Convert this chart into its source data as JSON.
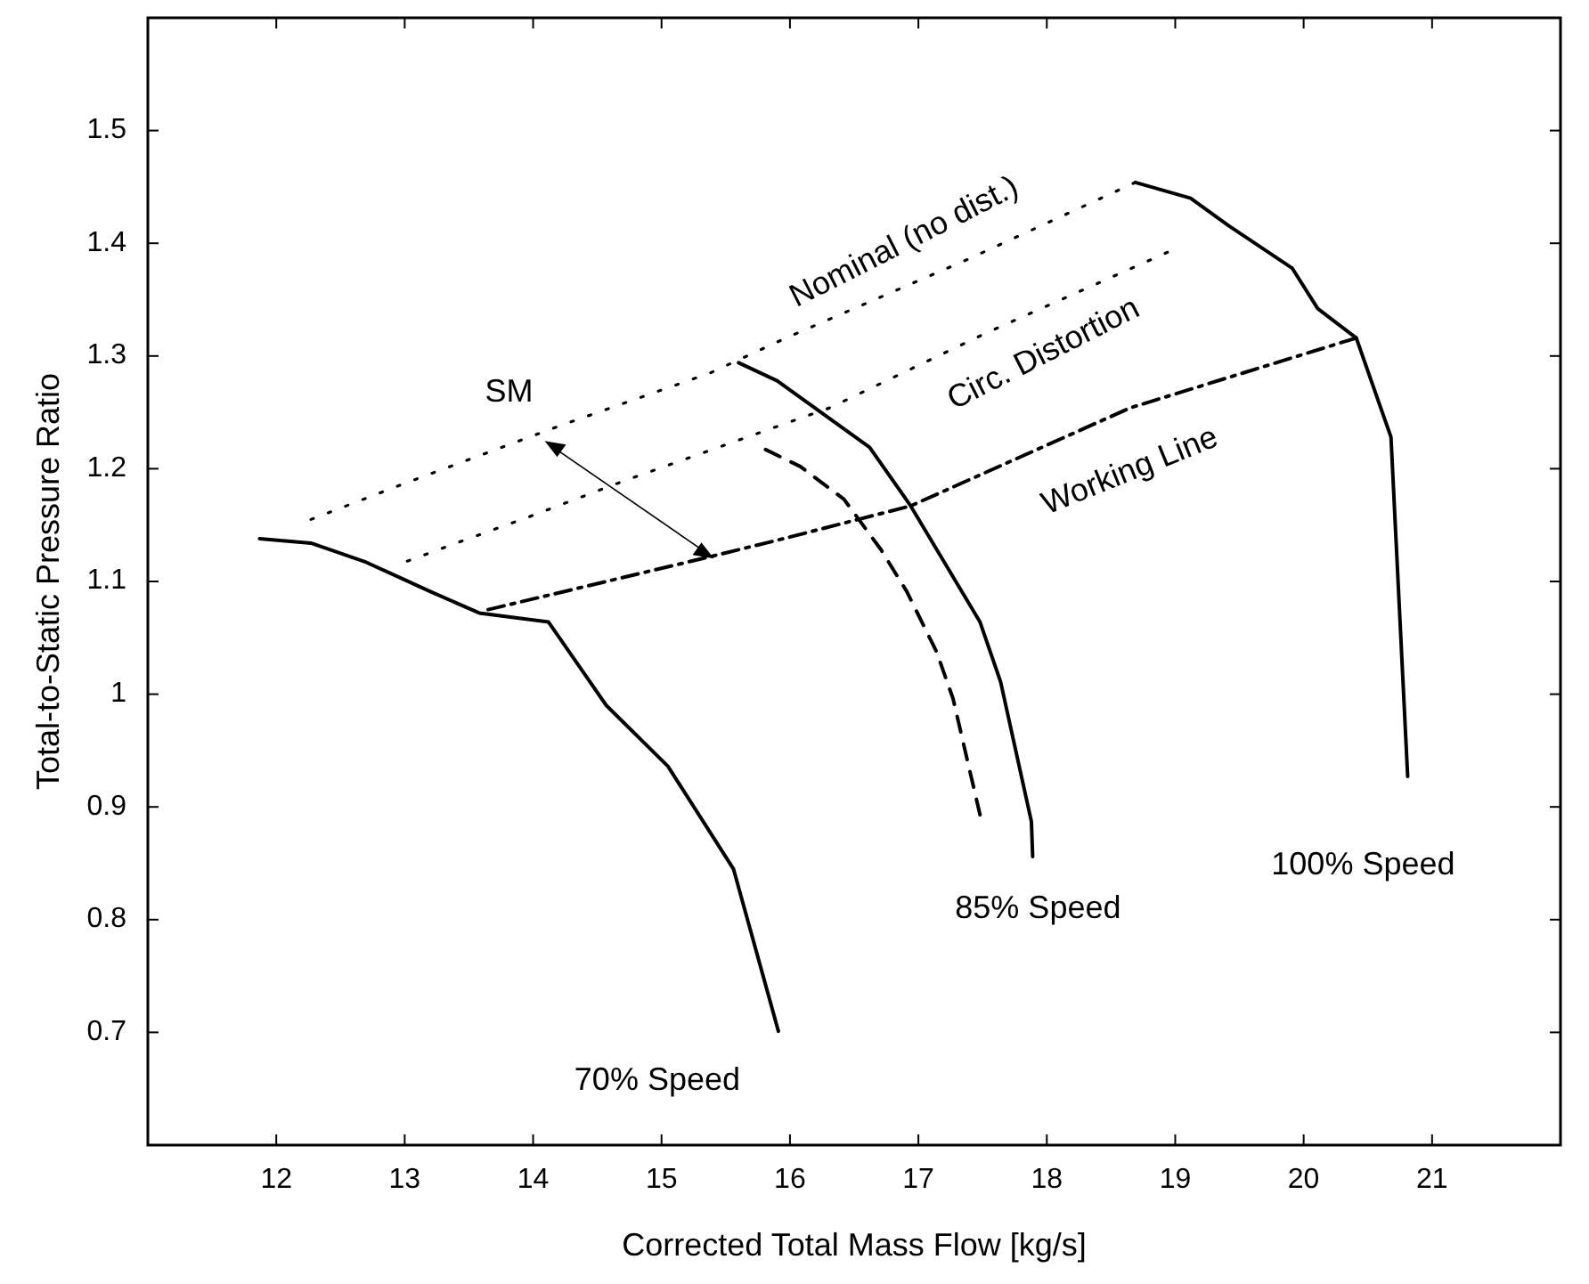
{
  "chart_data": {
    "type": "line",
    "xlabel": "Corrected Total Mass Flow [kg/s]",
    "ylabel": "Total-to-Static Pressure Ratio",
    "xlim": [
      11,
      22
    ],
    "ylim": [
      0.6,
      1.6
    ],
    "xticks": [
      12,
      13,
      14,
      15,
      16,
      17,
      18,
      19,
      20,
      21
    ],
    "yticks": [
      0.7,
      0.8,
      0.9,
      1,
      1.1,
      1.2,
      1.3,
      1.4,
      1.5
    ],
    "grid": false,
    "series": [
      {
        "name": "70% Speed",
        "color": "#000000",
        "line_style": "solid",
        "x": [
          11.87,
          12.27,
          12.7,
          12.95,
          13.2,
          13.58,
          14.12,
          14.57,
          15.05,
          15.56,
          15.91
        ],
        "values": [
          1.138,
          1.134,
          1.117,
          1.104,
          1.091,
          1.072,
          1.064,
          0.99,
          0.936,
          0.845,
          0.701
        ]
      },
      {
        "name": "85% Speed",
        "color": "#000000",
        "line_style": "solid",
        "x": [
          15.6,
          15.9,
          16.62,
          16.94,
          17.48,
          17.64,
          17.88,
          17.89
        ],
        "values": [
          1.294,
          1.278,
          1.219,
          1.167,
          1.064,
          1.011,
          0.887,
          0.856
        ]
      },
      {
        "color": "#000000",
        "line_style": "dashed",
        "x": [
          15.81,
          16.08,
          16.42,
          16.71,
          16.91,
          17.14,
          17.27,
          17.39,
          17.48
        ],
        "values": [
          1.217,
          1.202,
          1.173,
          1.128,
          1.091,
          1.038,
          0.996,
          0.937,
          0.893
        ]
      },
      {
        "name": "100% Speed",
        "color": "#000000",
        "line_style": "solid",
        "x": [
          18.69,
          19.12,
          19.41,
          19.91,
          20.11,
          20.41,
          20.68,
          20.81
        ],
        "values": [
          1.454,
          1.44,
          1.416,
          1.378,
          1.342,
          1.316,
          1.228,
          0.927
        ]
      },
      {
        "name": "Nominal (no dist.)",
        "color": "#000000",
        "line_style": "dotted",
        "x": [
          12.27,
          13.0,
          14.23,
          15.38,
          15.95,
          17.39,
          18.69
        ],
        "values": [
          1.155,
          1.187,
          1.239,
          1.285,
          1.315,
          1.386,
          1.454
        ]
      },
      {
        "name": "Circ. Distortion",
        "color": "#000000",
        "line_style": "dotted",
        "x": [
          13.02,
          13.45,
          13.96,
          14.68,
          15.79,
          16.31,
          17.52,
          18.94
        ],
        "values": [
          1.118,
          1.136,
          1.157,
          1.188,
          1.233,
          1.254,
          1.32,
          1.392
        ]
      },
      {
        "name": "Working Line",
        "color": "#000000",
        "line_style": "dashdot",
        "x": [
          13.65,
          15.38,
          15.95,
          16.94,
          18.65,
          20.41
        ],
        "values": [
          1.075,
          1.122,
          1.138,
          1.167,
          1.254,
          1.316
        ]
      }
    ],
    "annotations": [
      "SM"
    ]
  }
}
